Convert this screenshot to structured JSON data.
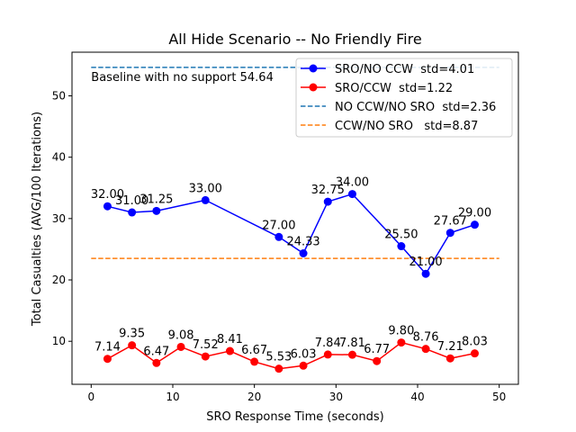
{
  "chart_data": {
    "type": "line",
    "title": "All Hide Scenario -- No Friendly Fire",
    "xlabel": "SRO Response Time (seconds)",
    "ylabel": "Total Casualties (AVG/100 Iterations)",
    "xlim": [
      -2.35,
      52.35
    ],
    "ylim": [
      2.99,
      57.11
    ],
    "xticks": [
      0,
      10,
      20,
      30,
      40,
      50
    ],
    "yticks": [
      10,
      20,
      30,
      40,
      50
    ],
    "grid": false,
    "legend_position": "top-right",
    "series": [
      {
        "name": "SRO/NO CCW  std=4.01",
        "color": "#0000ff",
        "x": [
          2,
          5,
          8,
          14,
          23,
          26,
          29,
          32,
          38,
          41,
          44,
          47
        ],
        "y": [
          32.0,
          31.0,
          31.25,
          33.0,
          27.0,
          24.33,
          32.75,
          34.0,
          25.5,
          21.0,
          27.67,
          29.0
        ],
        "labels": [
          "32.00",
          "31.00",
          "31.25",
          "33.00",
          "27.00",
          "24.33",
          "32.75",
          "34.00",
          "25.50",
          "21.00",
          "27.67",
          "29.00"
        ]
      },
      {
        "name": "SRO/CCW  std=1.22",
        "color": "#ff0000",
        "x": [
          2,
          5,
          8,
          11,
          14,
          17,
          20,
          23,
          26,
          29,
          32,
          35,
          38,
          41,
          44,
          47
        ],
        "y": [
          7.14,
          9.35,
          6.47,
          9.08,
          7.52,
          8.41,
          6.67,
          5.53,
          6.03,
          7.84,
          7.81,
          6.77,
          9.8,
          8.76,
          7.21,
          8.03
        ],
        "labels": [
          "7.14",
          "9.35",
          "6.47",
          "9.08",
          "7.52",
          "8.41",
          "6.67",
          "5.53",
          "6.03",
          "7.84",
          "7.81",
          "6.77",
          "9.80",
          "8.76",
          "7.21",
          "8.03"
        ]
      }
    ],
    "reference_lines": [
      {
        "name": "NO CCW/NO SRO  std=2.36",
        "color": "#1f77b4",
        "y": 54.64,
        "x_range": [
          0,
          50
        ]
      },
      {
        "name": "CCW/NO SRO   std=8.87",
        "color": "#ff7f0e",
        "y": 23.5,
        "x_range": [
          0,
          50
        ]
      }
    ],
    "annotations": [
      {
        "text": "Baseline with no support 54.64",
        "x": 0,
        "y": 53.0
      }
    ]
  }
}
